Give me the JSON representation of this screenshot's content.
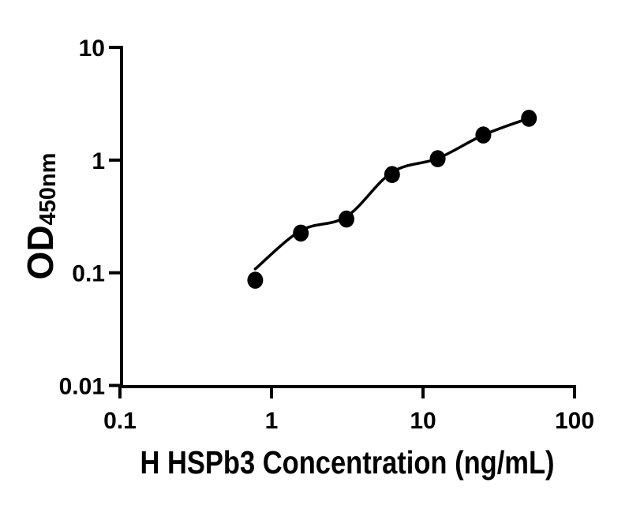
{
  "figure": {
    "background_color": "#ffffff",
    "foreground_color": "#000000"
  },
  "chart_data": {
    "type": "scatter",
    "title": "",
    "xlabel": "H HSPb3 Concentration (ng/mL)",
    "ylabel": "OD",
    "ylabel_subscript": "450nm",
    "xscale": "log",
    "yscale": "log",
    "xlim": [
      0.1,
      100
    ],
    "ylim": [
      0.01,
      10
    ],
    "grid": false,
    "legend_position": "none",
    "axis_color": "#000000",
    "marker_color": "#000000",
    "curve_color": "#000000",
    "xticks": [
      {
        "value": 0.1,
        "label": "0.1"
      },
      {
        "value": 1,
        "label": "1"
      },
      {
        "value": 10,
        "label": "10"
      },
      {
        "value": 100,
        "label": "100"
      }
    ],
    "yticks": [
      {
        "value": 10,
        "label": "10"
      },
      {
        "value": 1,
        "label": "1"
      },
      {
        "value": 0.1,
        "label": "0.1"
      },
      {
        "value": 0.01,
        "label": "0.01"
      }
    ],
    "series": [
      {
        "name": "standard-points",
        "type": "scatter",
        "marker": "filled-circle",
        "color": "#000000",
        "x": [
          0.781,
          1.563,
          3.125,
          6.25,
          12.5,
          25,
          50
        ],
        "y": [
          0.086,
          0.225,
          0.3,
          0.745,
          1.03,
          1.67,
          2.35
        ]
      },
      {
        "name": "fitted-curve",
        "type": "line",
        "color": "#000000",
        "x": [
          0.781,
          1.563,
          3.125,
          6.25,
          12.5,
          25,
          50
        ],
        "y": [
          0.108,
          0.237,
          0.315,
          0.78,
          1.035,
          1.67,
          2.35
        ]
      }
    ]
  }
}
